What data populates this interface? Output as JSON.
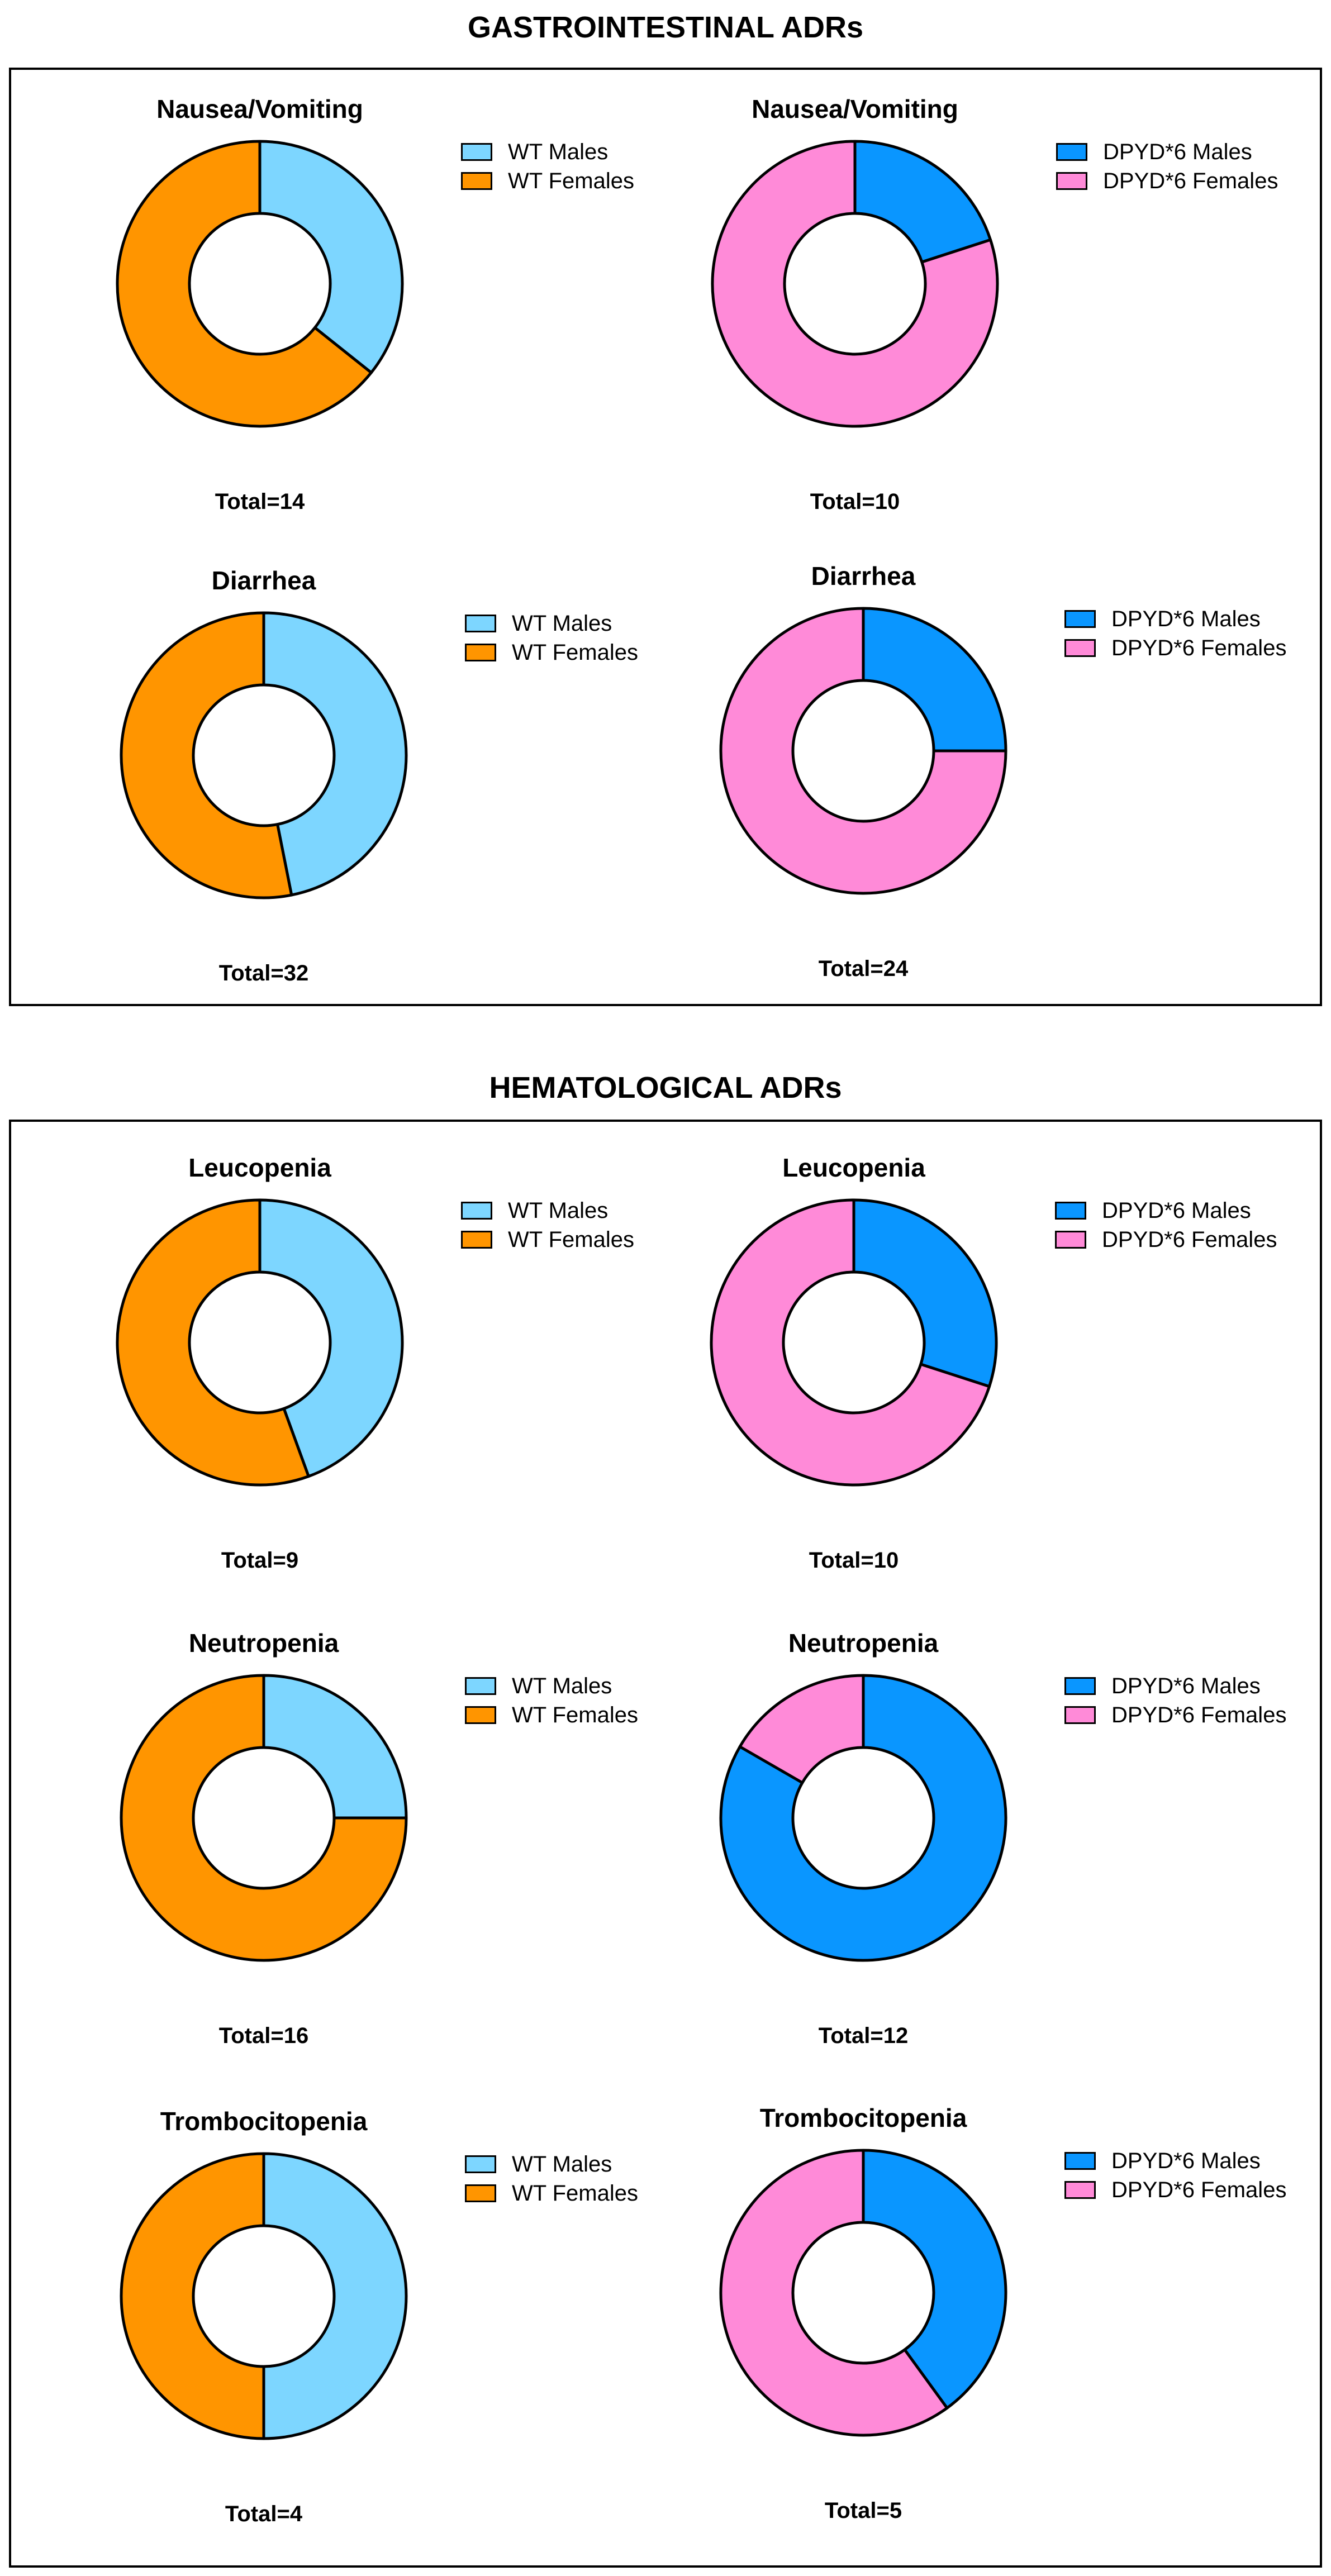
{
  "sections": [
    {
      "title": "GASTROINTESTINAL ADRs"
    },
    {
      "title": "HEMATOLOGICAL ADRs"
    }
  ],
  "colors": {
    "wt_males": "#7dd6ff",
    "wt_females": "#ff9500",
    "dpyd_males": "#0a96ff",
    "dpyd_females": "#ff8ad8"
  },
  "chart_data": [
    {
      "type": "pie",
      "section": "GASTROINTESTINAL ADRs",
      "title": "Nausea/Vomiting",
      "total_label": "Total=14",
      "total": 14,
      "categories": [
        "WT Males",
        "WT Females"
      ],
      "values": [
        5,
        9
      ],
      "colors": [
        "#7dd6ff",
        "#ff9500"
      ],
      "legend": "right"
    },
    {
      "type": "pie",
      "section": "GASTROINTESTINAL ADRs",
      "title": "Nausea/Vomiting",
      "total_label": "Total=10",
      "total": 10,
      "categories": [
        "DPYD*6 Males",
        "DPYD*6 Females"
      ],
      "values": [
        2,
        8
      ],
      "colors": [
        "#0a96ff",
        "#ff8ad8"
      ],
      "legend": "right"
    },
    {
      "type": "pie",
      "section": "GASTROINTESTINAL ADRs",
      "title": "Diarrhea",
      "total_label": "Total=32",
      "total": 32,
      "categories": [
        "WT Males",
        "WT Females"
      ],
      "values": [
        15,
        17
      ],
      "colors": [
        "#7dd6ff",
        "#ff9500"
      ],
      "legend": "right"
    },
    {
      "type": "pie",
      "section": "GASTROINTESTINAL ADRs",
      "title": "Diarrhea",
      "total_label": "Total=24",
      "total": 24,
      "categories": [
        "DPYD*6 Males",
        "DPYD*6 Females"
      ],
      "values": [
        6,
        18
      ],
      "colors": [
        "#0a96ff",
        "#ff8ad8"
      ],
      "legend": "right"
    },
    {
      "type": "pie",
      "section": "HEMATOLOGICAL ADRs",
      "title": "Leucopenia",
      "total_label": "Total=9",
      "total": 9,
      "categories": [
        "WT Males",
        "WT Females"
      ],
      "values": [
        4,
        5
      ],
      "colors": [
        "#7dd6ff",
        "#ff9500"
      ],
      "legend": "right"
    },
    {
      "type": "pie",
      "section": "HEMATOLOGICAL ADRs",
      "title": "Leucopenia",
      "total_label": "Total=10",
      "total": 10,
      "categories": [
        "DPYD*6 Males",
        "DPYD*6 Females"
      ],
      "values": [
        3,
        7
      ],
      "colors": [
        "#0a96ff",
        "#ff8ad8"
      ],
      "legend": "right"
    },
    {
      "type": "pie",
      "section": "HEMATOLOGICAL ADRs",
      "title": "Neutropenia",
      "total_label": "Total=16",
      "total": 16,
      "categories": [
        "WT Males",
        "WT Females"
      ],
      "values": [
        4,
        12
      ],
      "colors": [
        "#7dd6ff",
        "#ff9500"
      ],
      "legend": "right"
    },
    {
      "type": "pie",
      "section": "HEMATOLOGICAL ADRs",
      "title": "Neutropenia",
      "total_label": "Total=12",
      "total": 12,
      "categories": [
        "DPYD*6 Males",
        "DPYD*6 Females"
      ],
      "values": [
        10,
        2
      ],
      "colors": [
        "#0a96ff",
        "#ff8ad8"
      ],
      "legend": "right"
    },
    {
      "type": "pie",
      "section": "HEMATOLOGICAL ADRs",
      "title": "Trombocitopenia",
      "total_label": "Total=4",
      "total": 4,
      "categories": [
        "WT Males",
        "WT Females"
      ],
      "values": [
        2,
        2
      ],
      "colors": [
        "#7dd6ff",
        "#ff9500"
      ],
      "legend": "right"
    },
    {
      "type": "pie",
      "section": "HEMATOLOGICAL ADRs",
      "title": "Trombocitopenia",
      "total_label": "Total=5",
      "total": 5,
      "categories": [
        "DPYD*6 Males",
        "DPYD*6 Females"
      ],
      "values": [
        2,
        3
      ],
      "colors": [
        "#0a96ff",
        "#ff8ad8"
      ],
      "legend": "right"
    }
  ]
}
